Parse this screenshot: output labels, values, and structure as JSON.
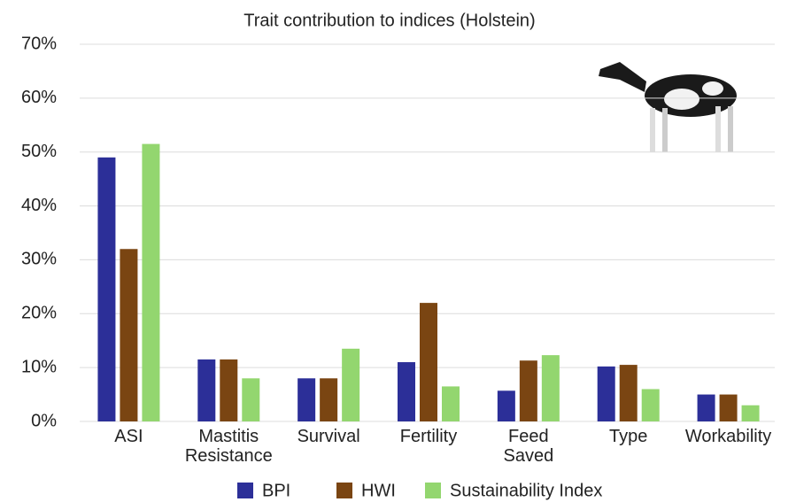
{
  "chart_data": {
    "type": "bar",
    "title": "Trait contribution to indices (Holstein)",
    "categories": [
      "ASI",
      "Mastitis\nResistance",
      "Survival",
      "Fertility",
      "Feed\nSaved",
      "Type",
      "Workability"
    ],
    "series": [
      {
        "name": "BPI",
        "color": "#2c2f98",
        "values": [
          49,
          11.5,
          8,
          11,
          5.7,
          10.2,
          5
        ]
      },
      {
        "name": "HWI",
        "color": "#7a4512",
        "values": [
          32,
          11.5,
          8,
          22,
          11.3,
          10.5,
          5
        ]
      },
      {
        "name": "Sustainability Index",
        "color": "#93d66f",
        "values": [
          51.5,
          8,
          13.5,
          6.5,
          12.3,
          6,
          3
        ]
      }
    ],
    "ylim": [
      0,
      70
    ],
    "yticks": [
      {
        "value": 0,
        "label": "0%"
      },
      {
        "value": 10,
        "label": "10%"
      },
      {
        "value": 20,
        "label": "20%"
      },
      {
        "value": 30,
        "label": "30%"
      },
      {
        "value": 40,
        "label": "40%"
      },
      {
        "value": 50,
        "label": "50%"
      },
      {
        "value": 60,
        "label": "60%"
      },
      {
        "value": 70,
        "label": "70%"
      }
    ],
    "grid": true
  }
}
